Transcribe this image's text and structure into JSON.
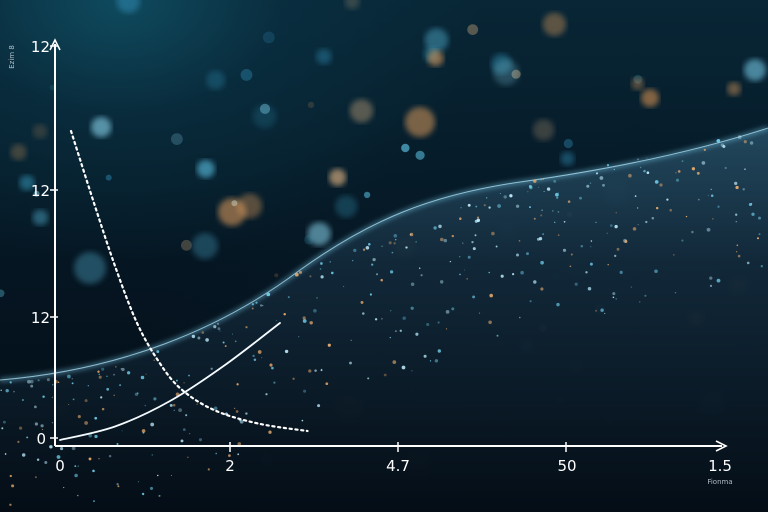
{
  "chart_data": {
    "type": "line",
    "title": "",
    "xlabel": "Fionma",
    "ylabel": "Ezim 8",
    "x_ticks": [
      "0",
      "2",
      "4.7",
      "50",
      "1.5"
    ],
    "y_ticks": [
      "0",
      "12",
      "12",
      "12"
    ],
    "grid": false,
    "legend": "none",
    "series": [
      {
        "name": "dotted-decay",
        "style": "dotted",
        "x": [
          0.2,
          0.6,
          1.0,
          1.4,
          1.8,
          2.2,
          2.8,
          3.6,
          4.5
        ],
        "y": [
          10.3,
          8.0,
          5.8,
          3.9,
          2.6,
          1.7,
          1.0,
          0.55,
          0.3
        ]
      },
      {
        "name": "solid-rise",
        "style": "solid",
        "x": [
          0.0,
          1.0,
          2.0,
          3.0,
          4.0
        ],
        "y": [
          0.0,
          0.45,
          1.3,
          2.5,
          3.9
        ]
      }
    ],
    "colors": {
      "axis": "#ffffff",
      "dotted": "#ffffff",
      "solid": "#f4fbff",
      "wave_glow": "#7fd7f5"
    }
  }
}
